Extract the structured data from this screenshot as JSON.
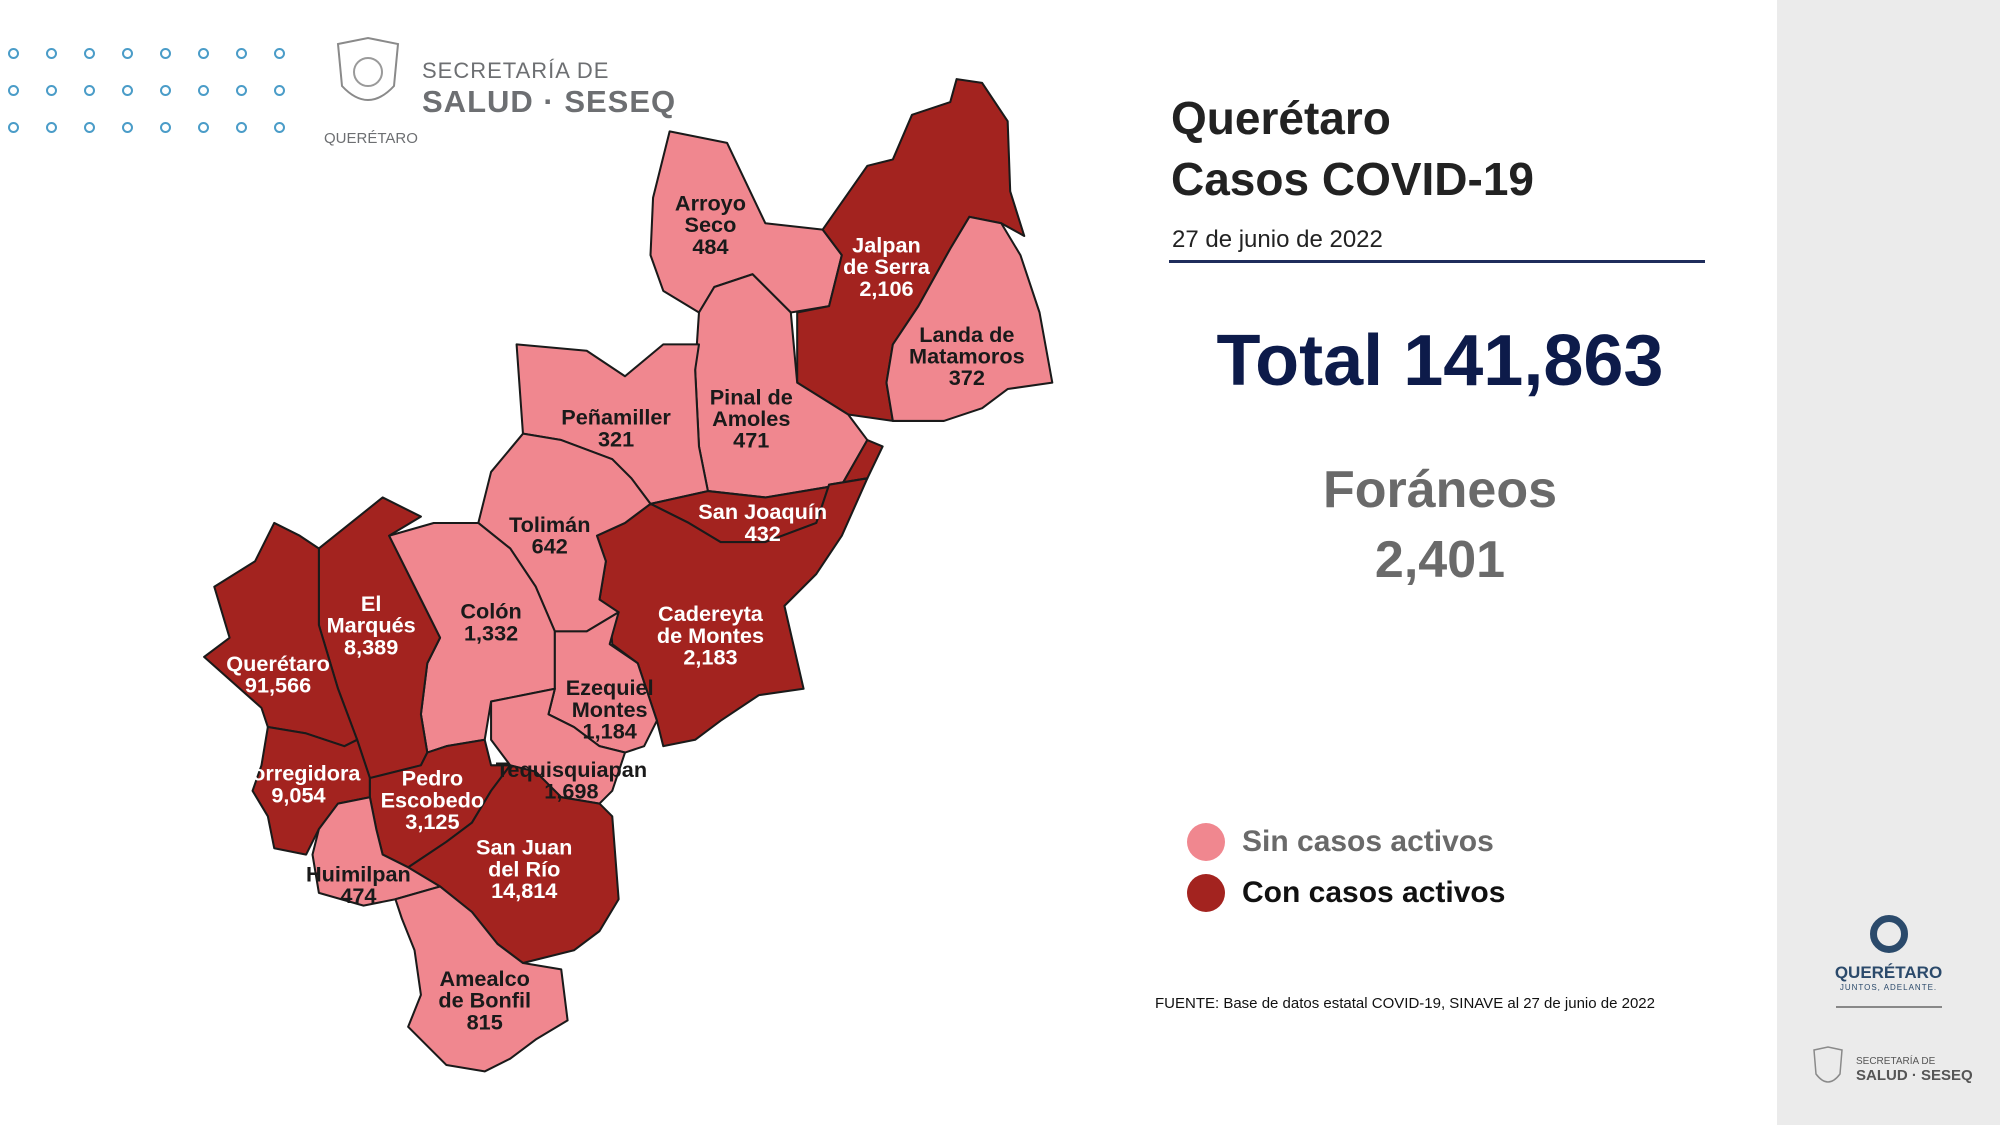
{
  "header": {
    "logo_line1": "SECRETARÍA DE",
    "logo_line2": "SALUD · SESEQ",
    "logo_line3": "QUERÉTARO"
  },
  "main": {
    "title_line1": "Querétaro",
    "title_line2": "Casos COVID-19",
    "date": "27 de junio de 2022",
    "total": "Total 141,863",
    "foraneos_label": "Foráneos",
    "foraneos_value": "2,401"
  },
  "legend": [
    {
      "label": "Sin casos activos",
      "color": "#f0878f"
    },
    {
      "label": "Con casos activos",
      "color": "#a3231f"
    }
  ],
  "source": "FUENTE: Base de datos estatal  COVID-19,  SINAVE  al 27 de junio de 2022",
  "sidebar": {
    "brand": "QUERÉTARO",
    "tagline": "JUNTOS, ADELANTE.",
    "logo_line1": "SECRETARÍA DE",
    "logo_line2": "SALUD · SESEQ"
  },
  "municipalities": [
    {
      "name": [
        "Arroyo",
        "Seco"
      ],
      "cases": "484",
      "active": false
    },
    {
      "name": [
        "Jalpan",
        "de Serra"
      ],
      "cases": "2,106",
      "active": true
    },
    {
      "name": [
        "Landa de",
        "Matamoros"
      ],
      "cases": "372",
      "active": false
    },
    {
      "name": [
        "Pinal de",
        "Amoles"
      ],
      "cases": "471",
      "active": false
    },
    {
      "name": [
        "Peñamiller"
      ],
      "cases": "321",
      "active": false
    },
    {
      "name": [
        "San Joaquín"
      ],
      "cases": "432",
      "active": true
    },
    {
      "name": [
        "Cadereyta",
        "de Montes"
      ],
      "cases": "2,183",
      "active": true
    },
    {
      "name": [
        "Tolimán"
      ],
      "cases": "642",
      "active": false
    },
    {
      "name": [
        "Colón"
      ],
      "cases": "1,332",
      "active": false
    },
    {
      "name": [
        "El",
        "Marqués"
      ],
      "cases": "8,389",
      "active": true
    },
    {
      "name": [
        "Querétaro"
      ],
      "cases": "91,566",
      "active": true
    },
    {
      "name": [
        "Corregidora"
      ],
      "cases": "9,054",
      "active": true
    },
    {
      "name": [
        "Ezequiel",
        "Montes"
      ],
      "cases": "1,184",
      "active": false
    },
    {
      "name": [
        "Tequisquiapan"
      ],
      "cases": "1,698",
      "active": false
    },
    {
      "name": [
        "Pedro",
        "Escobedo"
      ],
      "cases": "3,125",
      "active": true
    },
    {
      "name": [
        "San Juan",
        "del Río"
      ],
      "cases": "14,814",
      "active": true
    },
    {
      "name": [
        "Huimilpan"
      ],
      "cases": "474",
      "active": false
    },
    {
      "name": [
        "Amealco",
        "de Bonfil"
      ],
      "cases": "815",
      "active": false
    }
  ]
}
